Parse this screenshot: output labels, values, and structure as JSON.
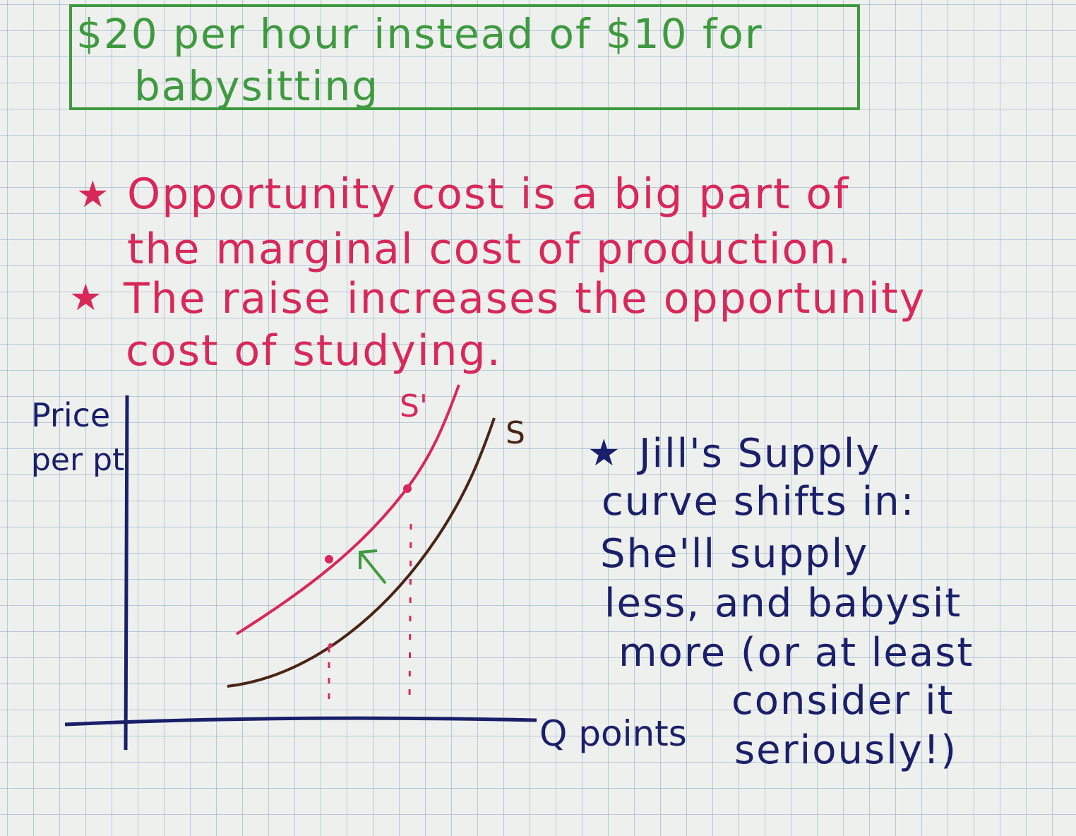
{
  "title": {
    "line1": "$20 per hour instead of $10 for",
    "line2": "babysitting"
  },
  "bullets_red": [
    {
      "star": "★",
      "line1": "Opportunity cost is a big part of",
      "line2": "the marginal cost of production."
    },
    {
      "star": "★",
      "line1": "The raise increases the opportunity",
      "line2": "cost of studying."
    }
  ],
  "graph": {
    "y_axis_label_line1": "Price",
    "y_axis_label_line2": "per pt",
    "x_axis_label": "Q points",
    "curve_s_label": "S",
    "curve_s_prime_label": "S'"
  },
  "note_blue": {
    "star": "★",
    "lines": [
      "Jill's Supply",
      "curve shifts in:",
      "She'll supply",
      "less, and babysit",
      "more (or at least",
      "consider it",
      "seriously!)"
    ]
  },
  "colors": {
    "title_green": "#3f9a3f",
    "red_ink": "#d8285a",
    "blue_ink": "#1a1f6a",
    "brown_curve": "#4a2414",
    "arrow_green": "#3f9a3f"
  }
}
